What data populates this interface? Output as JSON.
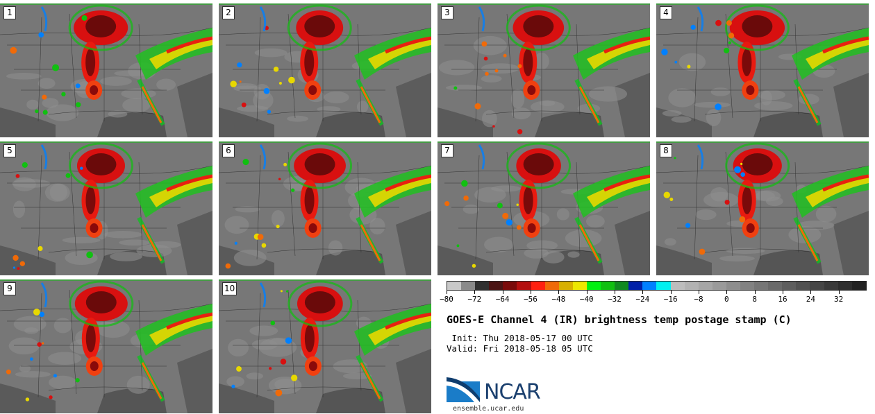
{
  "panels": [
    {
      "label": "1"
    },
    {
      "label": "2"
    },
    {
      "label": "3"
    },
    {
      "label": "4"
    },
    {
      "label": "5"
    },
    {
      "label": "6"
    },
    {
      "label": "7"
    },
    {
      "label": "8"
    },
    {
      "label": "9"
    },
    {
      "label": "10"
    }
  ],
  "colorbar": {
    "colors": [
      "#c8c8c8",
      "#8a8a8a",
      "#303030",
      "#4a1414",
      "#7a0a0a",
      "#b40f0f",
      "#ff2010",
      "#f06a08",
      "#d8b000",
      "#ece800",
      "#00f010",
      "#10c010",
      "#108a20",
      "#0020a8",
      "#0080ff",
      "#00f0f0",
      "#bdbdbd",
      "#b2b2b2",
      "#a6a6a6",
      "#9a9a9a",
      "#8e8e8e",
      "#828282",
      "#767676",
      "#6a6a6a",
      "#5e5e5e",
      "#525252",
      "#464646",
      "#3a3a3a",
      "#2e2e2e",
      "#222222"
    ],
    "ticks": [
      "-80",
      "-72",
      "-64",
      "-56",
      "-48",
      "-40",
      "-32",
      "-24",
      "-16",
      "-8",
      "0",
      "8",
      "16",
      "24",
      "32"
    ],
    "min": -80,
    "max": 40
  },
  "title": "GOES-E Channel 4 (IR) brightness temp postage stamp (C)",
  "init": " Init: Thu 2018-05-17 00 UTC",
  "valid": "Valid: Fri 2018-05-18 05 UTC",
  "logo": "NCAR",
  "site": "ensemble.ucar.edu"
}
